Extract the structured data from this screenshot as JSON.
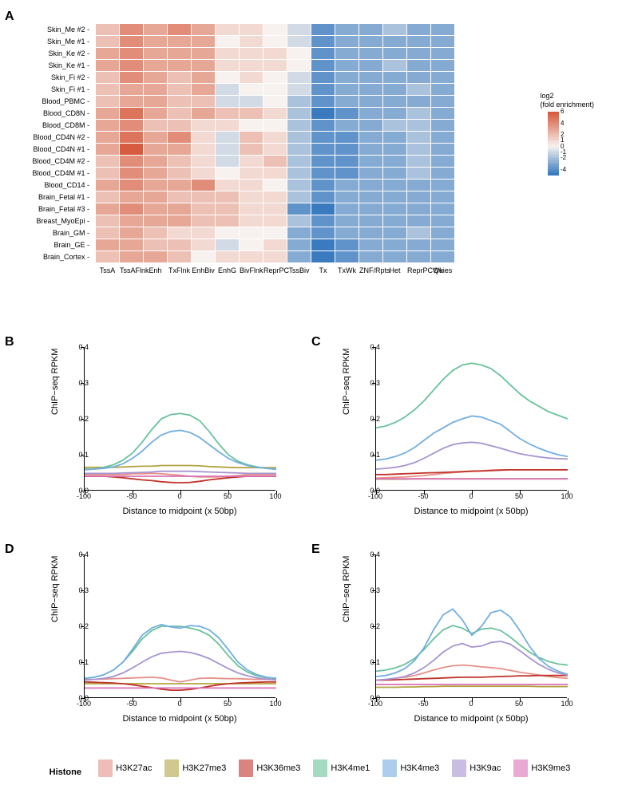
{
  "heatmap": {
    "rows": [
      "Skin_Me #2",
      "Skin_Me #1",
      "Skin_Ke #2",
      "Skin_Ke #1",
      "Skin_Fi #2",
      "Skin_Fi #1",
      "Blood_PBMC",
      "Blood_CD8N",
      "Blood_CD8M",
      "Blood_CD4N #2",
      "Blood_CD4N #1",
      "Blood_CD4M #2",
      "Blood_CD4M #1",
      "Blood_CD14",
      "Brain_Fetal #1",
      "Brain_Fetal #3",
      "Breast_MyoEpi",
      "Brain_GM",
      "Brain_GE",
      "Brain_Cortex"
    ],
    "cols": [
      "TssA",
      "TssAFlnk",
      "Enh",
      "TxFlnk",
      "EnhBiv",
      "EnhG",
      "BivFlnk",
      "ReprPC",
      "TssBiv",
      "Tx",
      "TxWk",
      "ZNF/Rpts",
      "Het",
      "ReprPCWk",
      "Quies"
    ],
    "values": [
      [
        2,
        4,
        3,
        4,
        3,
        1,
        1,
        0,
        -1,
        -4,
        -3,
        -3,
        -2,
        -3,
        -3
      ],
      [
        2,
        4,
        3,
        3,
        3,
        0,
        1,
        0,
        -1,
        -4,
        -3,
        -3,
        -3,
        -3,
        -3
      ],
      [
        3,
        4,
        3,
        3,
        3,
        1,
        1,
        1,
        0,
        -4,
        -3,
        -3,
        -3,
        -3,
        -3
      ],
      [
        3,
        4,
        3,
        3,
        3,
        1,
        1,
        1,
        0,
        -4,
        -3,
        -3,
        -2,
        -3,
        -3
      ],
      [
        2,
        4,
        3,
        2,
        3,
        0,
        1,
        0,
        -1,
        -4,
        -3,
        -3,
        -3,
        -3,
        -3
      ],
      [
        2,
        3,
        3,
        2,
        3,
        -1,
        0,
        0,
        -1,
        -4,
        -3,
        -3,
        -3,
        -2,
        -3
      ],
      [
        2,
        3,
        3,
        2,
        2,
        -1,
        -1,
        0,
        -2,
        -4,
        -3,
        -3,
        -3,
        -3,
        -3
      ],
      [
        3,
        5,
        3,
        2,
        3,
        2,
        2,
        1,
        -2,
        -5,
        -4,
        -3,
        -3,
        -2,
        -3
      ],
      [
        3,
        4,
        2,
        2,
        1,
        1,
        0,
        0,
        -2,
        -4,
        -3,
        -3,
        -2,
        -2,
        -3
      ],
      [
        3,
        5,
        3,
        4,
        1,
        -1,
        2,
        1,
        -2,
        -4,
        -4,
        -3,
        -3,
        -2,
        -3
      ],
      [
        3,
        6,
        3,
        3,
        1,
        -1,
        2,
        1,
        -2,
        -4,
        -4,
        -3,
        -3,
        -2,
        -3
      ],
      [
        2,
        4,
        3,
        2,
        1,
        -1,
        1,
        2,
        -2,
        -4,
        -4,
        -3,
        -3,
        -2,
        -3
      ],
      [
        2,
        4,
        3,
        2,
        1,
        0,
        1,
        1,
        -2,
        -4,
        -4,
        -3,
        -3,
        -2,
        -3
      ],
      [
        3,
        4,
        3,
        3,
        4,
        1,
        1,
        0,
        -2,
        -4,
        -3,
        -3,
        -3,
        -3,
        -3
      ],
      [
        2,
        3,
        3,
        2,
        2,
        2,
        1,
        1,
        -2,
        -4,
        -3,
        -3,
        -3,
        -3,
        -3
      ],
      [
        3,
        4,
        3,
        3,
        2,
        2,
        1,
        1,
        -4,
        -5,
        -3,
        -3,
        -3,
        -3,
        -3
      ],
      [
        2,
        3,
        3,
        3,
        2,
        2,
        1,
        1,
        -2,
        -4,
        -3,
        -3,
        -3,
        -3,
        -3
      ],
      [
        2,
        3,
        2,
        1,
        1,
        0,
        0,
        0,
        -3,
        -4,
        -3,
        -3,
        -3,
        -2,
        -3
      ],
      [
        3,
        3,
        2,
        2,
        1,
        -1,
        0,
        1,
        -3,
        -5,
        -4,
        -3,
        -3,
        -3,
        -3
      ],
      [
        2,
        3,
        3,
        2,
        0,
        1,
        1,
        1,
        -3,
        -5,
        -4,
        -3,
        -3,
        -3,
        -3
      ]
    ],
    "color_min": "#3a7bbf",
    "color_mid": "#f7f2ef",
    "color_max": "#d65b3f",
    "vmin": -5,
    "vmax": 6,
    "legend_title": "log2\n(fold enrichment)",
    "legend_ticks": [
      6,
      4,
      2,
      1,
      0,
      -1,
      -2,
      -4
    ]
  },
  "line_common": {
    "xlim": [
      -100,
      100
    ],
    "ylim": [
      0.0,
      0.4
    ],
    "xticks": [
      -100,
      -50,
      0,
      50,
      100
    ],
    "yticks": [
      0.0,
      0.1,
      0.2,
      0.3,
      0.4
    ],
    "xlabel": "Distance to midpoint (x 50bp)",
    "ylabel": "ChIP−seq RPKM"
  },
  "histone_colors": {
    "H3K27ac": "#e59188",
    "H3K27me3": "#b2a441",
    "H3K36me3": "#c0342a",
    "H3K4me1": "#69c29b",
    "H3K4me3": "#72aee0",
    "H3K9ac": "#a694d0",
    "H3K9me3": "#d971b5"
  },
  "histone_legend_title": "Histone",
  "histone_order": [
    "H3K27ac",
    "H3K27me3",
    "H3K36me3",
    "H3K4me1",
    "H3K4me3",
    "H3K9ac",
    "H3K9me3"
  ],
  "panels_xy": {
    "B": {
      "H3K27ac": [
        0.045,
        0.045,
        0.045,
        0.045,
        0.045,
        0.047,
        0.047,
        0.048,
        0.047,
        0.045,
        0.043,
        0.04,
        0.038,
        0.038,
        0.038,
        0.04,
        0.042,
        0.045,
        0.045,
        0.045,
        0.045
      ],
      "H3K27me3": [
        0.065,
        0.065,
        0.065,
        0.065,
        0.066,
        0.067,
        0.068,
        0.068,
        0.07,
        0.07,
        0.07,
        0.07,
        0.069,
        0.067,
        0.066,
        0.065,
        0.064,
        0.064,
        0.064,
        0.064,
        0.064
      ],
      "H3K36me3": [
        0.04,
        0.04,
        0.04,
        0.038,
        0.036,
        0.033,
        0.03,
        0.028,
        0.025,
        0.023,
        0.022,
        0.023,
        0.026,
        0.03,
        0.033,
        0.036,
        0.038,
        0.04,
        0.04,
        0.04,
        0.04
      ],
      "H3K4me1": [
        0.06,
        0.06,
        0.065,
        0.072,
        0.085,
        0.105,
        0.135,
        0.17,
        0.2,
        0.212,
        0.215,
        0.21,
        0.195,
        0.165,
        0.13,
        0.1,
        0.082,
        0.072,
        0.066,
        0.062,
        0.06
      ],
      "H3K4me3": [
        0.058,
        0.06,
        0.062,
        0.066,
        0.075,
        0.09,
        0.11,
        0.135,
        0.155,
        0.165,
        0.168,
        0.162,
        0.148,
        0.128,
        0.108,
        0.09,
        0.078,
        0.07,
        0.065,
        0.062,
        0.059
      ],
      "H3K9ac": [
        0.048,
        0.048,
        0.048,
        0.048,
        0.049,
        0.05,
        0.051,
        0.052,
        0.054,
        0.054,
        0.054,
        0.054,
        0.053,
        0.052,
        0.051,
        0.05,
        0.049,
        0.048,
        0.048,
        0.048,
        0.048
      ],
      "H3K9me3": [
        0.04,
        0.04,
        0.04,
        0.04,
        0.04,
        0.04,
        0.04,
        0.04,
        0.04,
        0.04,
        0.04,
        0.04,
        0.04,
        0.04,
        0.04,
        0.04,
        0.04,
        0.04,
        0.04,
        0.04,
        0.04
      ]
    },
    "C": {
      "H3K27ac": [
        0.035,
        0.036,
        0.037,
        0.038,
        0.04,
        0.042,
        0.045,
        0.048,
        0.05,
        0.052,
        0.055,
        0.055,
        0.057,
        0.058,
        0.058,
        0.058,
        0.058,
        0.058,
        0.058,
        0.058,
        0.058
      ],
      "H3K27me3": [
        0.032,
        0.032,
        0.032,
        0.032,
        0.033,
        0.033,
        0.033,
        0.033,
        0.033,
        0.033,
        0.033,
        0.033,
        0.033,
        0.033,
        0.033,
        0.033,
        0.033,
        0.033,
        0.033,
        0.033,
        0.033
      ],
      "H3K36me3": [
        0.045,
        0.045,
        0.046,
        0.047,
        0.048,
        0.049,
        0.05,
        0.051,
        0.052,
        0.053,
        0.054,
        0.055,
        0.056,
        0.057,
        0.058,
        0.058,
        0.058,
        0.058,
        0.058,
        0.058,
        0.058
      ],
      "H3K4me1": [
        0.175,
        0.18,
        0.19,
        0.205,
        0.225,
        0.25,
        0.28,
        0.31,
        0.335,
        0.35,
        0.355,
        0.35,
        0.34,
        0.32,
        0.295,
        0.27,
        0.25,
        0.235,
        0.22,
        0.21,
        0.2
      ],
      "H3K4me3": [
        0.085,
        0.088,
        0.095,
        0.105,
        0.12,
        0.14,
        0.16,
        0.175,
        0.19,
        0.2,
        0.208,
        0.205,
        0.195,
        0.185,
        0.165,
        0.145,
        0.13,
        0.118,
        0.108,
        0.1,
        0.095
      ],
      "H3K9ac": [
        0.06,
        0.062,
        0.065,
        0.07,
        0.078,
        0.09,
        0.104,
        0.118,
        0.128,
        0.133,
        0.135,
        0.132,
        0.125,
        0.118,
        0.11,
        0.103,
        0.098,
        0.094,
        0.091,
        0.089,
        0.088
      ],
      "H3K9me3": [
        0.033,
        0.033,
        0.033,
        0.033,
        0.033,
        0.033,
        0.033,
        0.033,
        0.033,
        0.033,
        0.033,
        0.033,
        0.033,
        0.033,
        0.033,
        0.033,
        0.033,
        0.033,
        0.033,
        0.033,
        0.033
      ]
    },
    "D": {
      "H3K27ac": [
        0.052,
        0.052,
        0.053,
        0.054,
        0.055,
        0.056,
        0.057,
        0.058,
        0.056,
        0.05,
        0.045,
        0.05,
        0.055,
        0.056,
        0.055,
        0.054,
        0.054,
        0.053,
        0.052,
        0.052,
        0.052
      ],
      "H3K27me3": [
        0.04,
        0.04,
        0.04,
        0.04,
        0.04,
        0.04,
        0.04,
        0.04,
        0.04,
        0.04,
        0.04,
        0.04,
        0.04,
        0.04,
        0.04,
        0.04,
        0.04,
        0.04,
        0.04,
        0.04,
        0.04
      ],
      "H3K36me3": [
        0.045,
        0.044,
        0.043,
        0.042,
        0.04,
        0.037,
        0.033,
        0.029,
        0.025,
        0.022,
        0.022,
        0.024,
        0.028,
        0.033,
        0.037,
        0.04,
        0.042,
        0.043,
        0.044,
        0.045,
        0.045
      ],
      "H3K4me1": [
        0.055,
        0.058,
        0.065,
        0.078,
        0.1,
        0.13,
        0.165,
        0.188,
        0.2,
        0.2,
        0.2,
        0.195,
        0.188,
        0.175,
        0.15,
        0.118,
        0.09,
        0.072,
        0.062,
        0.057,
        0.055
      ],
      "H3K4me3": [
        0.055,
        0.058,
        0.065,
        0.078,
        0.1,
        0.136,
        0.175,
        0.195,
        0.205,
        0.198,
        0.195,
        0.202,
        0.2,
        0.19,
        0.168,
        0.135,
        0.1,
        0.078,
        0.065,
        0.058,
        0.055
      ],
      "H3K9ac": [
        0.05,
        0.052,
        0.055,
        0.06,
        0.07,
        0.084,
        0.1,
        0.115,
        0.125,
        0.128,
        0.13,
        0.127,
        0.12,
        0.11,
        0.096,
        0.082,
        0.07,
        0.062,
        0.056,
        0.053,
        0.05
      ],
      "H3K9me3": [
        0.028,
        0.028,
        0.028,
        0.028,
        0.028,
        0.028,
        0.028,
        0.028,
        0.028,
        0.028,
        0.028,
        0.028,
        0.028,
        0.028,
        0.028,
        0.028,
        0.028,
        0.028,
        0.028,
        0.028,
        0.028
      ]
    },
    "E": {
      "H3K27ac": [
        0.05,
        0.052,
        0.055,
        0.058,
        0.063,
        0.07,
        0.078,
        0.085,
        0.09,
        0.092,
        0.09,
        0.087,
        0.085,
        0.082,
        0.077,
        0.072,
        0.068,
        0.064,
        0.06,
        0.057,
        0.055
      ],
      "H3K27me3": [
        0.03,
        0.03,
        0.03,
        0.031,
        0.031,
        0.032,
        0.032,
        0.033,
        0.033,
        0.033,
        0.033,
        0.033,
        0.033,
        0.033,
        0.033,
        0.033,
        0.033,
        0.032,
        0.032,
        0.032,
        0.032
      ],
      "H3K36me3": [
        0.05,
        0.05,
        0.051,
        0.052,
        0.053,
        0.054,
        0.055,
        0.056,
        0.057,
        0.058,
        0.058,
        0.058,
        0.059,
        0.06,
        0.061,
        0.062,
        0.062,
        0.063,
        0.063,
        0.063,
        0.063
      ],
      "H3K4me1": [
        0.075,
        0.078,
        0.084,
        0.094,
        0.11,
        0.135,
        0.165,
        0.19,
        0.202,
        0.195,
        0.18,
        0.192,
        0.195,
        0.188,
        0.17,
        0.148,
        0.128,
        0.113,
        0.102,
        0.095,
        0.092
      ],
      "H3K4me3": [
        0.06,
        0.063,
        0.07,
        0.082,
        0.104,
        0.14,
        0.19,
        0.232,
        0.248,
        0.218,
        0.175,
        0.2,
        0.238,
        0.245,
        0.226,
        0.188,
        0.145,
        0.11,
        0.088,
        0.075,
        0.066
      ],
      "H3K9ac": [
        0.05,
        0.052,
        0.055,
        0.06,
        0.07,
        0.085,
        0.105,
        0.128,
        0.145,
        0.152,
        0.142,
        0.145,
        0.155,
        0.158,
        0.15,
        0.132,
        0.112,
        0.094,
        0.08,
        0.07,
        0.064
      ],
      "H3K9me3": [
        0.038,
        0.038,
        0.038,
        0.038,
        0.038,
        0.038,
        0.038,
        0.038,
        0.038,
        0.038,
        0.038,
        0.038,
        0.038,
        0.038,
        0.038,
        0.038,
        0.038,
        0.038,
        0.038,
        0.038,
        0.038
      ]
    }
  },
  "panel_labels": {
    "A": "A",
    "B": "B",
    "C": "C",
    "D": "D",
    "E": "E"
  }
}
